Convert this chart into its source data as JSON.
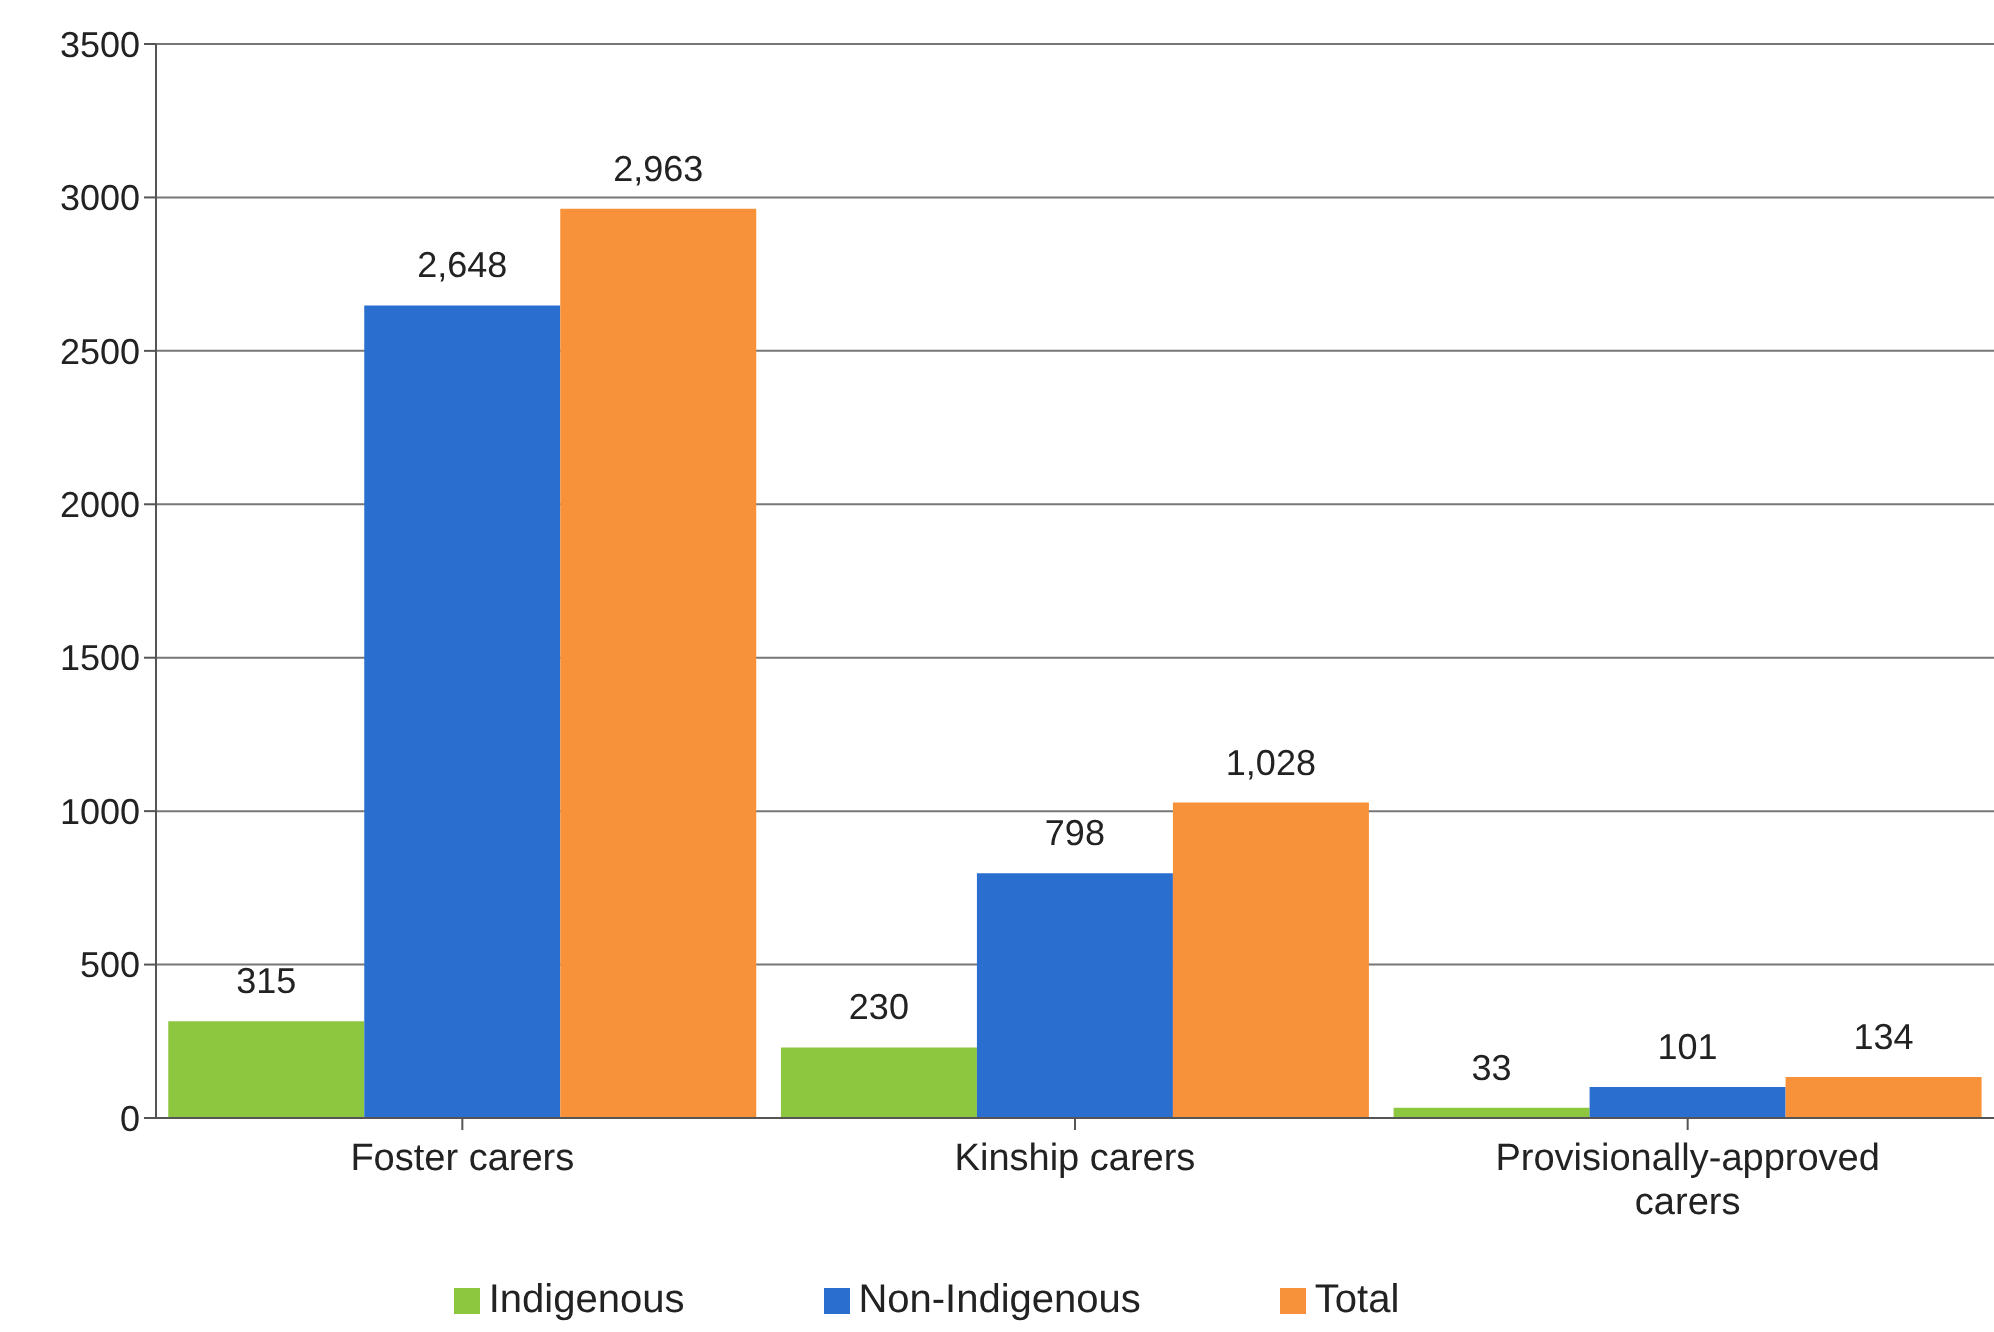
{
  "chart_data": {
    "type": "bar",
    "categories": [
      "Foster carers",
      "Kinship carers",
      "Provisionally-approved carers"
    ],
    "series": [
      {
        "name": "Indigenous",
        "color": "#8dc63f",
        "values": [
          315,
          230,
          33
        ],
        "value_labels": [
          "315",
          "230",
          "33"
        ]
      },
      {
        "name": "Non-Indigenous",
        "color": "#2a6fd0",
        "values": [
          2648,
          798,
          101
        ],
        "value_labels": [
          "2,648",
          "798",
          "101"
        ]
      },
      {
        "name": "Total",
        "color": "#f7923a",
        "values": [
          2963,
          1028,
          134
        ],
        "value_labels": [
          "2,963",
          "1,028",
          "134"
        ]
      }
    ],
    "ylim": [
      0,
      3500
    ],
    "yticks": [
      0,
      500,
      1000,
      1500,
      2000,
      2500,
      3000,
      3500
    ],
    "grid": "y",
    "legend": "bottom"
  }
}
